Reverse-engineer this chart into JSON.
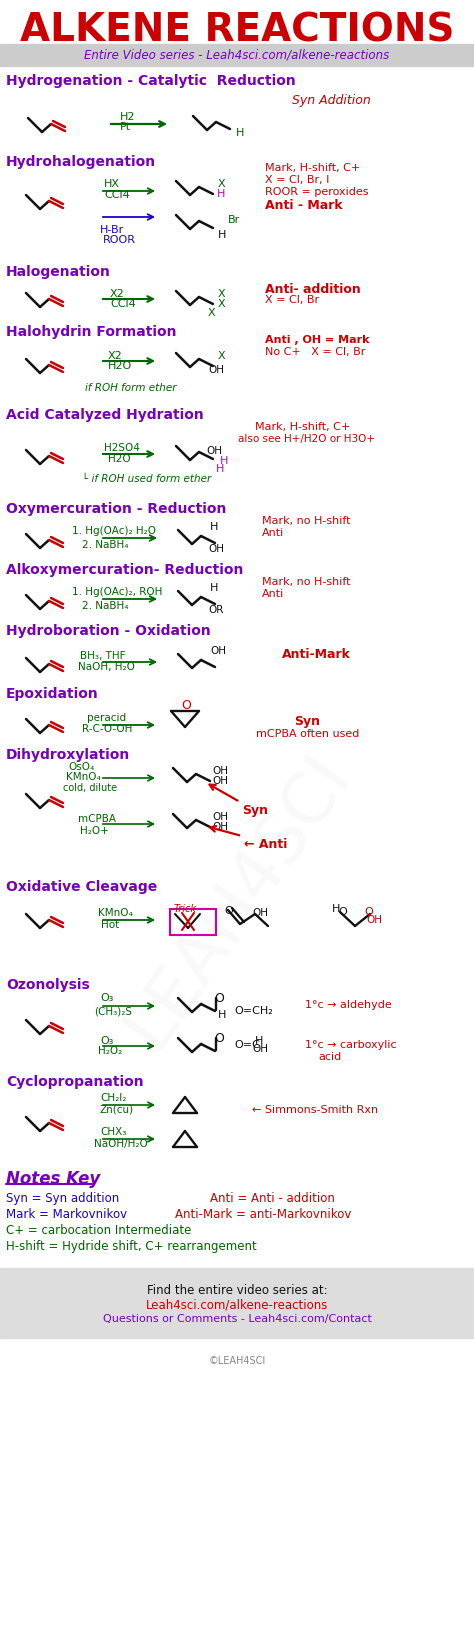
{
  "title": "ALKENE REACTIONS",
  "subtitle": "Entire Video series - Leah4sci.com/alkene-reactions",
  "bg_color": "#ffffff",
  "title_color": "#cc0000",
  "subtitle_color": "#7700bb",
  "purple": "#7700bb",
  "red": "#cc0000",
  "green": "#006600",
  "blue": "#2200cc",
  "black": "#111111",
  "pink": "#cc00aa",
  "gray_band": "#cccccc",
  "watermark": "©LEAH4SCI",
  "footer1": "Find the entire video series at:",
  "footer2": "Leah4sci.com/alkene-reactions",
  "footer3": "Questions or Comments - Leah4sci.com/Contact",
  "notes_key_line1a": "Syn = Syn addition",
  "notes_key_line1b": "Anti = Anti - addition",
  "notes_key_line2a": "Mark = Markovnikov",
  "notes_key_line2b": "Anti-Mark = anti-Markovnikov",
  "notes_key_line3": "C+ = carbocation Intermediate",
  "notes_key_line4": "H-shift = Hydride shift, C+ rearrangement"
}
